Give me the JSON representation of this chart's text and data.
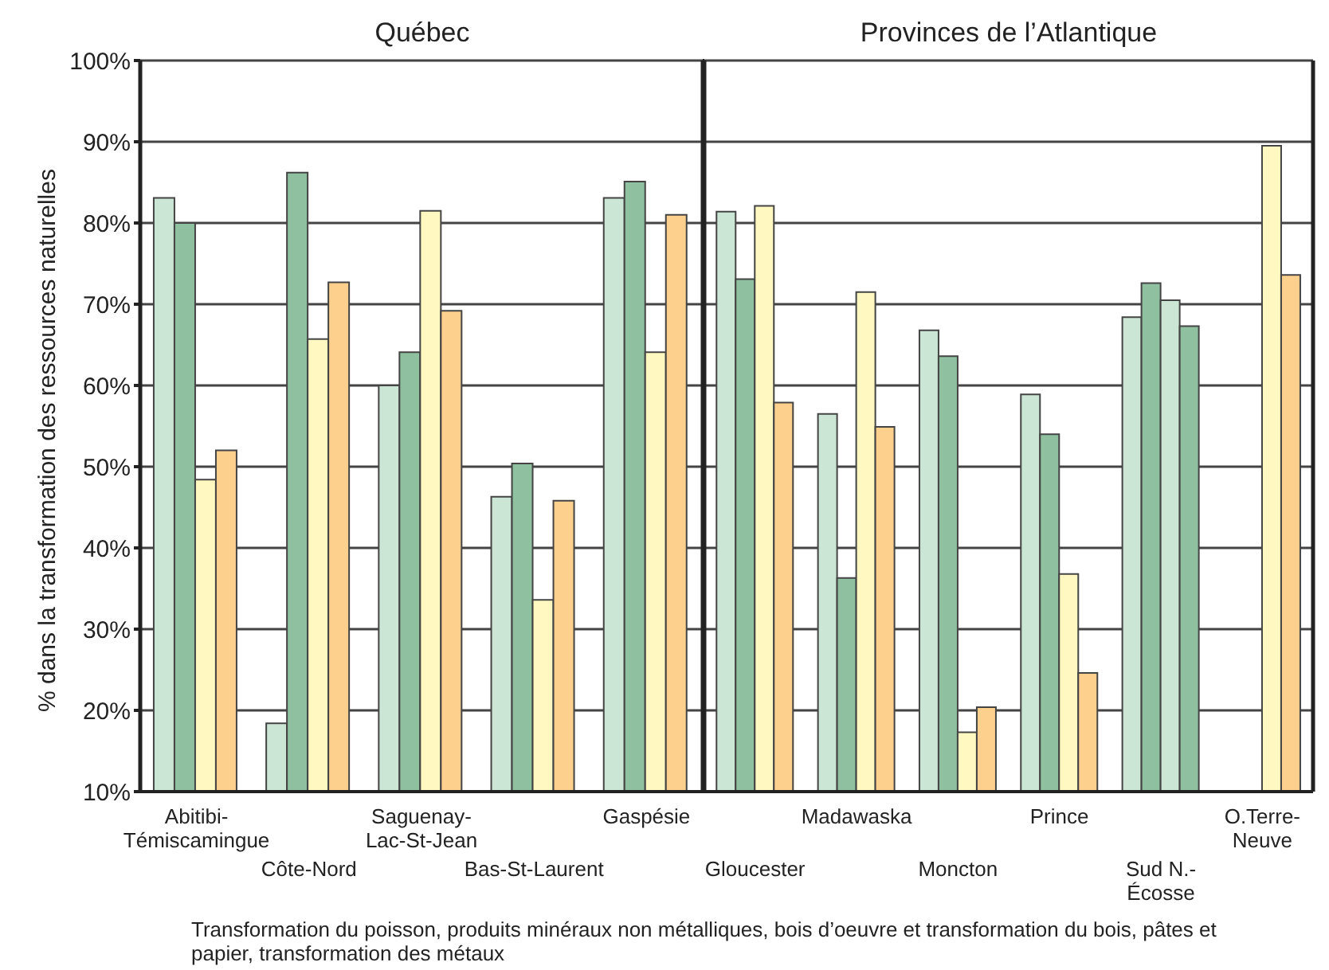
{
  "chart_data": [
    {
      "type": "bar",
      "title": "Québec",
      "ylabel": "% dans la transformation des ressources naturelles",
      "categories": [
        "Abitibi-\nTémiscamingue",
        "Côte-Nord",
        "Saguenay-\nLac-St-Jean",
        "Bas-St-Laurent",
        "Gaspésie"
      ],
      "series": [
        {
          "color": "#cce6d5",
          "values": [
            83.1,
            18.4,
            60,
            46.3,
            83.1
          ]
        },
        {
          "color": "#8fc1a0",
          "values": [
            80,
            86.2,
            64.1,
            50.4,
            85.1
          ]
        },
        {
          "color": "#fff8c0",
          "values": [
            48.4,
            65.7,
            81.5,
            33.6,
            64.1
          ]
        },
        {
          "color": "#fdd08e",
          "values": [
            52,
            72.7,
            69.2,
            45.8,
            81
          ]
        }
      ],
      "ylim": [
        10,
        100
      ],
      "yticks": [
        {
          "value": 10,
          "label": "10%"
        },
        {
          "value": 20,
          "label": "20%"
        },
        {
          "value": 30,
          "label": "30%"
        },
        {
          "value": 40,
          "label": "40%"
        },
        {
          "value": 50,
          "label": "50%"
        },
        {
          "value": 60,
          "label": "60%"
        },
        {
          "value": 70,
          "label": "70%"
        },
        {
          "value": 80,
          "label": "80%"
        },
        {
          "value": 90,
          "label": "90%"
        },
        {
          "value": 100,
          "label": "100%"
        }
      ],
      "grid": "y",
      "annotations": [
        "Transformation du poisson, produits minéraux non métalliques, bois d’oeuvre et transformation du bois, pâtes et papier, transformation des métaux"
      ]
    },
    {
      "type": "bar",
      "title": "Provinces de l’Atlantique",
      "categories": [
        "Gloucester",
        "Madawaska",
        "Moncton",
        "Prince",
        "Sud N.-\nÉcosse",
        "O.Terre-\nNeuve"
      ],
      "series": [
        {
          "color": "#cce6d5",
          "values": [
            81.4,
            56.5,
            66.8,
            58.9,
            68.4,
            null
          ]
        },
        {
          "color": "#8fc1a0",
          "values": [
            73.1,
            36.3,
            63.6,
            54,
            72.6,
            null
          ]
        },
        {
          "color": "#fff8c0",
          "colors": [
            "#fff8c0",
            "#fff8c0",
            "#fff8c0",
            "#fff8c0",
            "#cce6d5",
            "#fff8c0"
          ],
          "values": [
            82.1,
            71.5,
            17.3,
            36.8,
            70.5,
            89.5
          ]
        },
        {
          "color": "#fdd08e",
          "colors": [
            "#fdd08e",
            "#fdd08e",
            "#fdd08e",
            "#fdd08e",
            "#8fc1a0",
            "#fdd08e"
          ],
          "values": [
            57.9,
            54.9,
            20.4,
            24.6,
            67.3,
            73.6
          ]
        }
      ],
      "ylim": [
        10,
        100
      ],
      "yticks": [
        10,
        20,
        30,
        40,
        50,
        60,
        70,
        80,
        90,
        100
      ],
      "grid": "y",
      "tick_labels": "x"
    }
  ]
}
